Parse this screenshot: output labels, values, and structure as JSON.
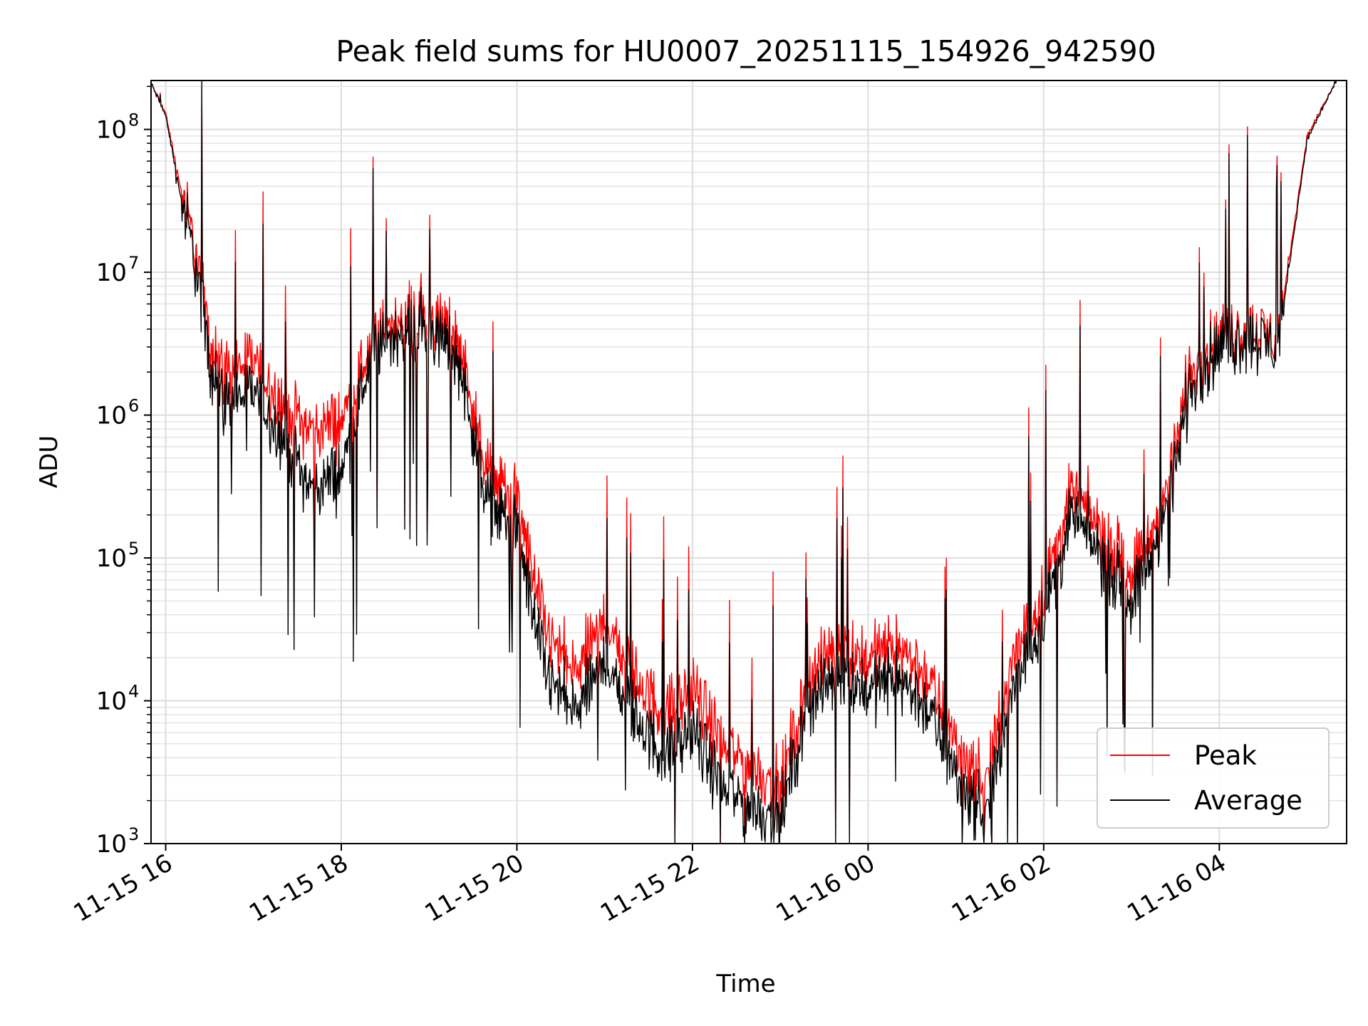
{
  "chart_data": {
    "type": "line",
    "title": "Peak field sums for HU0007_20251115_154926_942590",
    "xlabel": "Time",
    "ylabel": "ADU",
    "yscale": "log",
    "ylim": [
      1000,
      220000000
    ],
    "xlim": [
      "2025-11-15 15:50",
      "2025-11-16 05:27"
    ],
    "grid": true,
    "legend_position": "lower-right",
    "x_ticks": [
      "11-15 16",
      "11-15 18",
      "11-15 20",
      "11-15 22",
      "11-16 00",
      "11-16 02",
      "11-16 04"
    ],
    "y_ticks": [
      {
        "base": "10",
        "exp": "3"
      },
      {
        "base": "10",
        "exp": "4"
      },
      {
        "base": "10",
        "exp": "5"
      },
      {
        "base": "10",
        "exp": "6"
      },
      {
        "base": "10",
        "exp": "7"
      },
      {
        "base": "10",
        "exp": "8"
      }
    ],
    "colors": {
      "Peak": "#ff0000",
      "Average": "#000000"
    },
    "series": [
      {
        "name": "Peak",
        "x": [
          "2025-11-15 15:50",
          "2025-11-15 16:00",
          "2025-11-15 16:10",
          "2025-11-15 16:20",
          "2025-11-15 16:30",
          "2025-11-15 16:40",
          "2025-11-15 17:00",
          "2025-11-15 17:20",
          "2025-11-15 17:40",
          "2025-11-15 18:00",
          "2025-11-15 18:20",
          "2025-11-15 18:40",
          "2025-11-15 19:00",
          "2025-11-15 19:20",
          "2025-11-15 19:40",
          "2025-11-15 20:00",
          "2025-11-15 20:20",
          "2025-11-15 20:40",
          "2025-11-15 21:00",
          "2025-11-15 21:20",
          "2025-11-15 21:40",
          "2025-11-15 22:00",
          "2025-11-15 22:20",
          "2025-11-15 22:40",
          "2025-11-15 23:00",
          "2025-11-15 23:20",
          "2025-11-15 23:40",
          "2025-11-16 00:00",
          "2025-11-16 00:20",
          "2025-11-16 00:40",
          "2025-11-16 01:00",
          "2025-11-16 01:20",
          "2025-11-16 01:40",
          "2025-11-16 02:00",
          "2025-11-16 02:20",
          "2025-11-16 02:40",
          "2025-11-16 03:00",
          "2025-11-16 03:20",
          "2025-11-16 03:40",
          "2025-11-16 04:00",
          "2025-11-16 04:20",
          "2025-11-16 04:40",
          "2025-11-16 05:00",
          "2025-11-16 05:20"
        ],
        "values": [
          210000000,
          130000000,
          40000000,
          15000000,
          3500000,
          2000000,
          2500000,
          1200000,
          800000,
          900000,
          3000000,
          5000000,
          5000000,
          3500000,
          400000,
          250000,
          30000,
          15000,
          40000,
          15000,
          8000,
          12000,
          5000,
          3500,
          2500,
          15000,
          25000,
          20000,
          25000,
          15000,
          5000,
          2500,
          20000,
          60000,
          300000,
          150000,
          80000,
          200000,
          2000000,
          3500000,
          4000000,
          3500000,
          90000000,
          220000000
        ]
      },
      {
        "name": "Average",
        "x": [
          "2025-11-15 15:50",
          "2025-11-15 16:00",
          "2025-11-15 16:10",
          "2025-11-15 16:20",
          "2025-11-15 16:30",
          "2025-11-15 16:40",
          "2025-11-15 17:00",
          "2025-11-15 17:20",
          "2025-11-15 17:40",
          "2025-11-15 18:00",
          "2025-11-15 18:20",
          "2025-11-15 18:40",
          "2025-11-15 19:00",
          "2025-11-15 19:20",
          "2025-11-15 19:40",
          "2025-11-15 20:00",
          "2025-11-15 20:20",
          "2025-11-15 20:40",
          "2025-11-15 21:00",
          "2025-11-15 21:20",
          "2025-11-15 21:40",
          "2025-11-15 22:00",
          "2025-11-15 22:20",
          "2025-11-15 22:40",
          "2025-11-15 23:00",
          "2025-11-15 23:20",
          "2025-11-15 23:40",
          "2025-11-16 00:00",
          "2025-11-16 00:20",
          "2025-11-16 00:40",
          "2025-11-16 01:00",
          "2025-11-16 01:20",
          "2025-11-16 01:40",
          "2025-11-16 02:00",
          "2025-11-16 02:20",
          "2025-11-16 02:40",
          "2025-11-16 03:00",
          "2025-11-16 03:20",
          "2025-11-16 03:40",
          "2025-11-16 04:00",
          "2025-11-16 04:20",
          "2025-11-16 04:40",
          "2025-11-16 05:00",
          "2025-11-16 05:20"
        ],
        "values": [
          210000000,
          125000000,
          35000000,
          12000000,
          2500000,
          1200000,
          1500000,
          700000,
          300000,
          400000,
          2500000,
          4000000,
          4000000,
          2500000,
          250000,
          150000,
          15000,
          8000,
          20000,
          8000,
          4000,
          6000,
          2500,
          1800,
          1500,
          10000,
          15000,
          12000,
          15000,
          9000,
          3000,
          1500,
          12000,
          40000,
          200000,
          100000,
          50000,
          150000,
          1500000,
          3000000,
          3500000,
          3000000,
          85000000,
          220000000
        ]
      }
    ]
  }
}
